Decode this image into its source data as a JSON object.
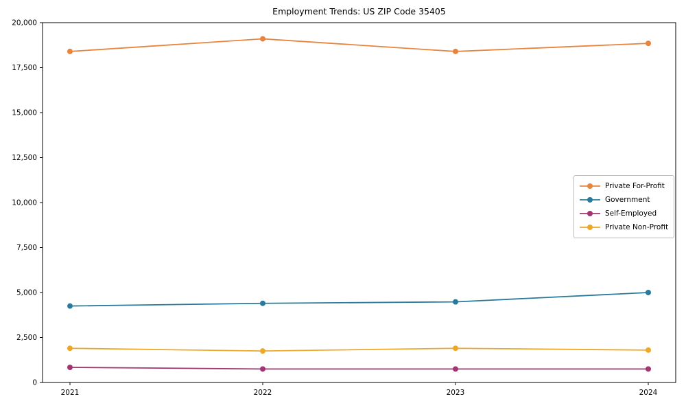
{
  "chart_data": {
    "type": "line",
    "title": "Employment Trends: US ZIP Code 35405",
    "categories": [
      "2021",
      "2022",
      "2023",
      "2024"
    ],
    "series": [
      {
        "name": "Private For-Profit",
        "color": "#e8843d",
        "values": [
          18400,
          19100,
          18400,
          18850
        ]
      },
      {
        "name": "Government",
        "color": "#2a7b9b",
        "values": [
          4250,
          4400,
          4480,
          5000
        ]
      },
      {
        "name": "Self-Employed",
        "color": "#a23673",
        "values": [
          840,
          750,
          750,
          750
        ]
      },
      {
        "name": "Private Non-Profit",
        "color": "#eda828",
        "values": [
          1900,
          1750,
          1900,
          1800
        ]
      }
    ],
    "xlabel": "",
    "ylabel": "",
    "xlim_categories_padded": true,
    "ylim": [
      0,
      20000
    ],
    "yticks": [
      0,
      2500,
      5000,
      7500,
      10000,
      12500,
      15000,
      17500,
      20000
    ],
    "ytick_labels": [
      "0",
      "2,500",
      "5,000",
      "7,500",
      "10,000",
      "12,500",
      "15,000",
      "17,500",
      "20,000"
    ],
    "legend": {
      "position": "center-right",
      "entries": [
        "Private For-Profit",
        "Government",
        "Self-Employed",
        "Private Non-Profit"
      ]
    },
    "grid": false
  }
}
